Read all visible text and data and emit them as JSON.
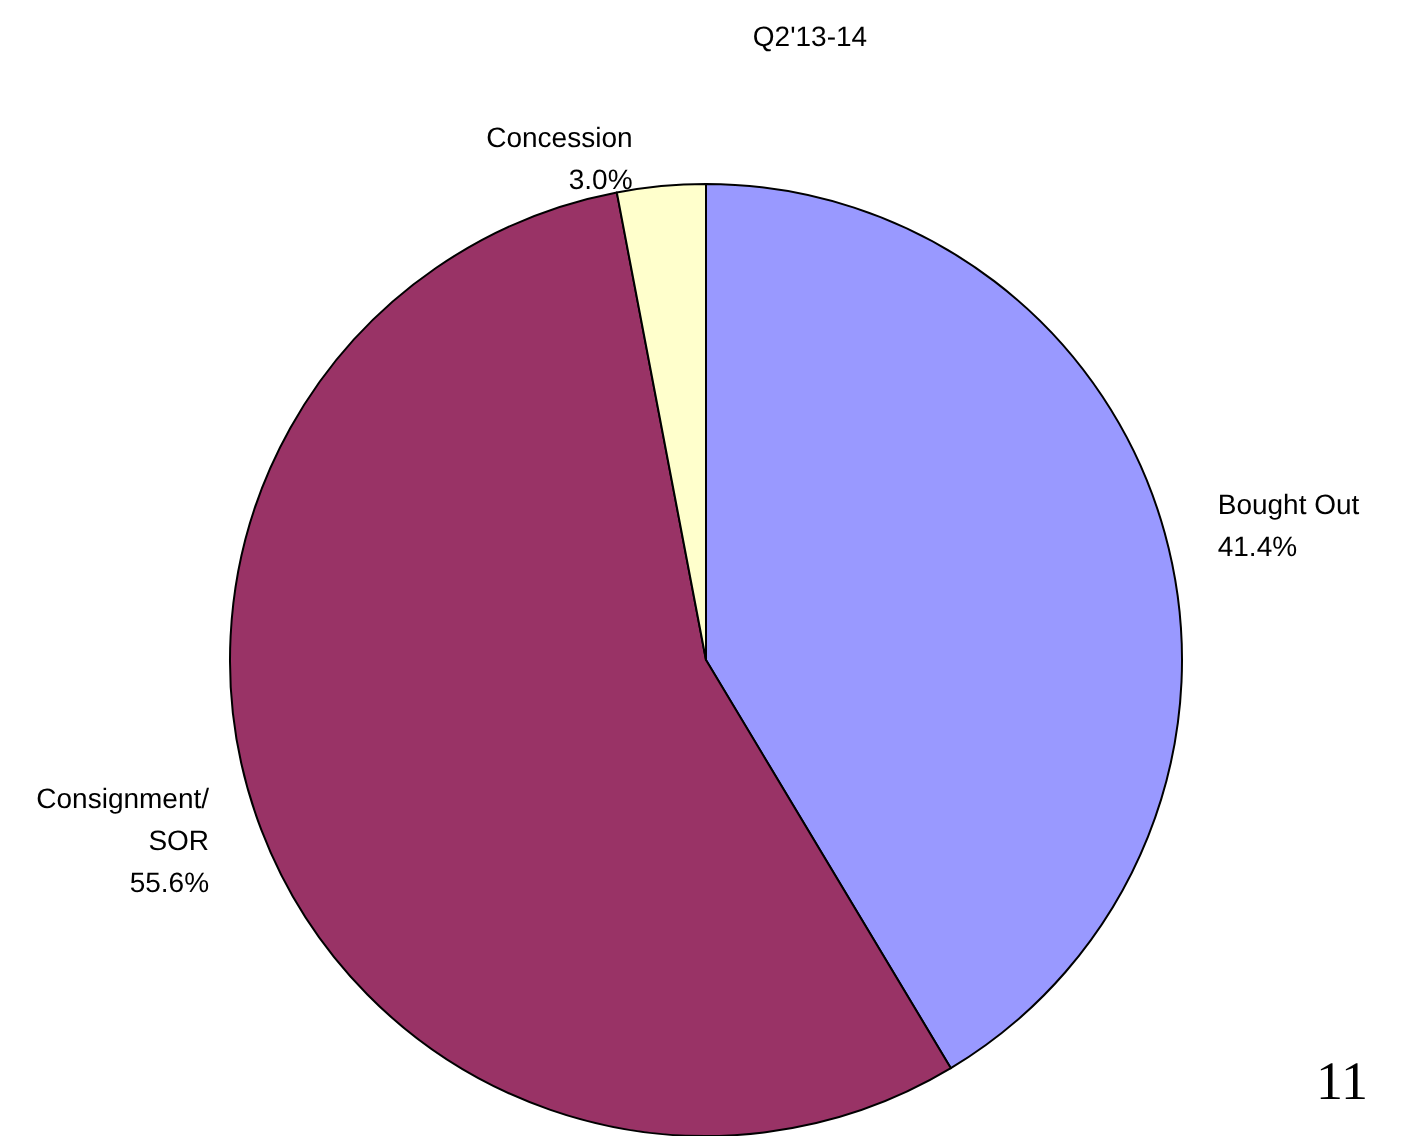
{
  "chart_data": {
    "type": "pie",
    "title": "Q2'13-14",
    "categories": [
      "Bought Out",
      "Consignment/SOR",
      "Concession"
    ],
    "values": [
      41.4,
      55.6,
      3.0
    ],
    "colors": [
      "#9999ff",
      "#993366",
      "#ffffcc"
    ],
    "value_labels": [
      "41.4%",
      "55.6%",
      "3.0%"
    ],
    "legend": false,
    "annotations": [
      "11"
    ]
  }
}
